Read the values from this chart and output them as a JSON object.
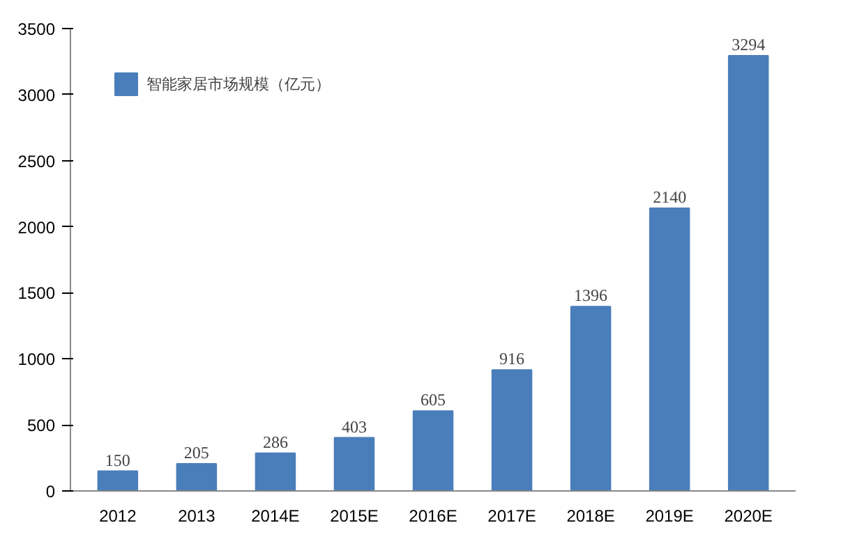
{
  "chart_data": {
    "type": "bar",
    "categories": [
      "2012",
      "2013",
      "2014E",
      "2015E",
      "2016E",
      "2017E",
      "2018E",
      "2019E",
      "2020E"
    ],
    "series": [
      {
        "name": "智能家居市场规模（亿元）",
        "color": "#4a7ebb",
        "values": [
          150,
          205,
          286,
          403,
          605,
          916,
          1396,
          2140,
          3294
        ]
      }
    ],
    "ylim": [
      0,
      3500
    ],
    "yticks": [
      0,
      500,
      1000,
      1500,
      2000,
      2500,
      3000,
      3500
    ],
    "data_labels": true,
    "legend": "top left",
    "grid": false
  }
}
